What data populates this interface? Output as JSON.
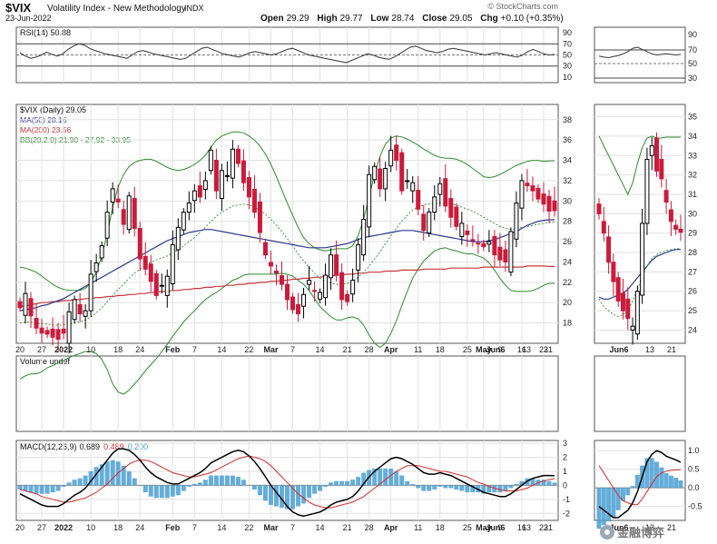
{
  "header": {
    "ticker": "$VIX",
    "name": "Volatility Index - New Methodology",
    "exchange": "INDX",
    "date": "23-Jun-2022",
    "open_label": "Open",
    "open": "29.29",
    "high_label": "High",
    "high": "29.77",
    "low_label": "Low",
    "low": "28.74",
    "close_label": "Close",
    "close": "29.05",
    "chg_label": "Chg",
    "chg": "+0.10 (+0.35%)",
    "brand": "© StockCharts.com"
  },
  "rsi": {
    "label": "RSI(14) 50.88",
    "ticks": [
      "90",
      "70",
      "50",
      "30",
      "10"
    ],
    "tick_values": [
      90,
      70,
      50,
      30,
      10
    ],
    "values": [
      54,
      48,
      44,
      46,
      50,
      55,
      51,
      48,
      52,
      60,
      66,
      70,
      68,
      62,
      58,
      55,
      52,
      50,
      48,
      46,
      44,
      50,
      56,
      58,
      55,
      52,
      50,
      48,
      46,
      44,
      42,
      44,
      50,
      56,
      62,
      64,
      60,
      56,
      52,
      50,
      48,
      46,
      50,
      54,
      56,
      54,
      52,
      50,
      52,
      56,
      60,
      62,
      58,
      54,
      50,
      48,
      46,
      44,
      42,
      40,
      38,
      36,
      40,
      44,
      48,
      52,
      50,
      46,
      44,
      42,
      46,
      52,
      58,
      64,
      66,
      62,
      58,
      56,
      54,
      56,
      60,
      62,
      60,
      58,
      56,
      54,
      52,
      50,
      52,
      54,
      52,
      50,
      48,
      46,
      50,
      56,
      60,
      56,
      52,
      50,
      51
    ]
  },
  "price": {
    "label_symbol": "$VIX (Daily) 29.05",
    "label_ma50": "MA(50) 28.16",
    "label_ma200": "MA(200) 23.56",
    "label_bb": "BB(20,2.0) 21.90 - 27.92 - 33.95",
    "ticks": [
      "38",
      "36",
      "34",
      "32",
      "30",
      "28",
      "26",
      "24",
      "22",
      "20",
      "18"
    ],
    "tick_values": [
      38,
      36,
      34,
      32,
      30,
      28,
      26,
      24,
      22,
      20,
      18
    ],
    "ylim": [
      16,
      39.5
    ],
    "close": [
      19.5,
      20.9,
      18.7,
      17.5,
      17.0,
      16.9,
      16.6,
      16.4,
      17.0,
      19.1,
      20.3,
      18.9,
      19.2,
      22.8,
      23.9,
      25.6,
      28.9,
      31.2,
      29.9,
      27.7,
      30.5,
      27.3,
      24.3,
      23.3,
      22.1,
      20.7,
      21.7,
      22.6,
      25.7,
      27.4,
      28.9,
      29.8,
      31.0,
      30.4,
      32.0,
      35.0,
      31.0,
      33.0,
      32.5,
      35.1,
      33.7,
      31.8,
      30.4,
      28.9,
      26.9,
      24.7,
      23.6,
      22.9,
      21.8,
      20.3,
      19.3,
      18.9,
      20.8,
      22.2,
      21.1,
      21.0,
      22.7,
      24.7,
      22.7,
      20.3,
      20.1,
      22.2,
      25.7,
      28.2,
      32.6,
      33.4,
      31.2,
      33.2,
      35.0,
      34.0,
      31.0,
      32.0,
      31.8,
      29.2,
      27.1,
      28.9,
      30.4,
      31.7,
      29.5,
      28.4,
      27.5,
      27.8,
      26.7,
      26.1,
      25.8,
      25.5,
      26.0,
      24.7,
      24.2,
      24.0,
      27.0,
      29.8,
      32.0,
      31.5,
      31.0,
      30.2,
      29.7,
      29.0,
      29.05
    ],
    "ma50": [
      19.2,
      19.3,
      19.4,
      19.5,
      19.7,
      19.8,
      20.0,
      20.2,
      20.4,
      20.7,
      21.0,
      21.3,
      21.6,
      21.9,
      22.2,
      22.5,
      22.8,
      23.1,
      23.4,
      23.7,
      24.0,
      24.3,
      24.6,
      24.9,
      25.2,
      25.5,
      25.8,
      26.1,
      26.3,
      26.5,
      26.7,
      26.9,
      27.0,
      27.1,
      27.2,
      27.2,
      27.1,
      27.0,
      26.9,
      26.8,
      26.7,
      26.6,
      26.5,
      26.4,
      26.3,
      26.2,
      26.1,
      26.0,
      25.9,
      25.8,
      25.7,
      25.6,
      25.5,
      25.4,
      25.4,
      25.4,
      25.4,
      25.5,
      25.6,
      25.7,
      25.8,
      26.0,
      26.2,
      26.4,
      26.5,
      26.6,
      26.7,
      26.8,
      26.9,
      27.0,
      27.1,
      27.1,
      27.1,
      27.0,
      26.9,
      26.8,
      26.7,
      26.6,
      26.5,
      26.4,
      26.3,
      26.2,
      26.1,
      26.0,
      26.0,
      26.0,
      26.1,
      26.2,
      26.4,
      26.6,
      26.8,
      27.0,
      27.3,
      27.6,
      27.8,
      28.0,
      28.1,
      28.15,
      28.16
    ],
    "ma200": [
      19.6,
      19.7,
      19.8,
      19.9,
      20.0,
      20.0,
      20.1,
      20.1,
      20.2,
      20.2,
      20.3,
      20.3,
      20.4,
      20.4,
      20.5,
      20.5,
      20.6,
      20.6,
      20.7,
      20.7,
      20.8,
      20.8,
      20.9,
      20.9,
      21.0,
      21.0,
      21.1,
      21.1,
      21.2,
      21.2,
      21.3,
      21.3,
      21.4,
      21.4,
      21.5,
      21.5,
      21.6,
      21.6,
      21.7,
      21.7,
      21.8,
      21.8,
      21.9,
      21.9,
      22.0,
      22.0,
      22.1,
      22.1,
      22.2,
      22.2,
      22.3,
      22.3,
      22.4,
      22.4,
      22.5,
      22.5,
      22.6,
      22.6,
      22.7,
      22.7,
      22.8,
      22.8,
      22.9,
      22.9,
      23.0,
      23.0,
      23.0,
      23.1,
      23.1,
      23.1,
      23.2,
      23.2,
      23.2,
      23.2,
      23.3,
      23.3,
      23.3,
      23.3,
      23.3,
      23.4,
      23.4,
      23.4,
      23.4,
      23.4,
      23.4,
      23.5,
      23.5,
      23.5,
      23.5,
      23.5,
      23.5,
      23.5,
      23.5,
      23.6,
      23.6,
      23.6,
      23.6,
      23.56,
      23.56
    ],
    "bb_mid": [
      18.0,
      18.1,
      18.1,
      18.0,
      17.9,
      17.9,
      17.8,
      17.8,
      17.8,
      17.9,
      18.0,
      18.1,
      18.3,
      18.6,
      19.0,
      19.5,
      20.1,
      20.7,
      21.3,
      21.8,
      22.4,
      22.9,
      23.3,
      23.7,
      24.0,
      24.2,
      24.4,
      24.6,
      24.9,
      25.2,
      25.6,
      26.0,
      26.4,
      26.9,
      27.4,
      28.0,
      28.5,
      28.9,
      29.2,
      29.5,
      29.6,
      29.7,
      29.6,
      29.4,
      29.1,
      28.7,
      28.2,
      27.6,
      27.0,
      26.3,
      25.6,
      24.8,
      24.1,
      23.5,
      22.9,
      22.4,
      22.1,
      21.9,
      21.8,
      21.8,
      21.9,
      22.1,
      22.5,
      23.0,
      23.6,
      24.3,
      25.0,
      25.8,
      26.6,
      27.3,
      28.0,
      28.6,
      29.1,
      29.4,
      29.6,
      29.7,
      29.8,
      29.8,
      29.8,
      29.7,
      29.6,
      29.4,
      29.2,
      29.0,
      28.7,
      28.4,
      28.1,
      27.8,
      27.5,
      27.3,
      27.2,
      27.3,
      27.4,
      27.5,
      27.6,
      27.7,
      27.8,
      27.9,
      27.92
    ],
    "bb_upper": [
      23.5,
      23.4,
      23.2,
      23.0,
      22.6,
      22.2,
      21.8,
      21.5,
      21.3,
      21.2,
      21.2,
      21.2,
      21.4,
      22.0,
      23.0,
      24.6,
      26.8,
      29.4,
      31.4,
      32.6,
      33.4,
      33.8,
      34.0,
      34.1,
      34.1,
      33.9,
      33.6,
      33.3,
      33.1,
      33.0,
      33.1,
      33.3,
      33.6,
      34.0,
      34.5,
      35.3,
      36.0,
      36.4,
      36.6,
      36.8,
      36.8,
      36.7,
      36.4,
      36.0,
      35.4,
      34.6,
      33.6,
      32.4,
      31.1,
      29.8,
      28.6,
      27.4,
      26.4,
      25.8,
      25.4,
      25.2,
      25.1,
      25.2,
      25.3,
      25.3,
      25.3,
      25.6,
      26.6,
      28.2,
      30.4,
      32.6,
      34.4,
      35.6,
      36.2,
      36.4,
      36.3,
      36.1,
      35.8,
      35.5,
      35.1,
      34.8,
      34.5,
      34.3,
      34.2,
      34.2,
      34.1,
      33.9,
      33.6,
      33.2,
      32.8,
      32.4,
      32.3,
      32.4,
      32.6,
      32.9,
      33.2,
      33.5,
      33.7,
      33.9,
      34.0,
      34.0,
      33.9,
      33.95,
      33.95
    ],
    "bb_lower": [
      12.5,
      12.8,
      13.0,
      13.0,
      13.2,
      13.6,
      13.8,
      14.1,
      14.3,
      14.6,
      14.8,
      15.0,
      15.2,
      15.2,
      15.0,
      14.4,
      13.4,
      12.0,
      11.2,
      11.0,
      11.4,
      12.0,
      12.6,
      13.3,
      13.9,
      14.5,
      15.2,
      15.9,
      16.7,
      17.4,
      18.1,
      18.7,
      19.2,
      19.8,
      20.3,
      20.7,
      21.0,
      21.4,
      21.8,
      22.2,
      22.4,
      22.7,
      22.8,
      22.8,
      22.8,
      22.8,
      22.8,
      22.8,
      22.9,
      22.8,
      22.6,
      22.2,
      21.8,
      21.2,
      20.4,
      19.6,
      19.1,
      18.6,
      18.3,
      18.3,
      18.5,
      18.6,
      18.4,
      17.8,
      16.8,
      16.0,
      15.6,
      16.0,
      17.0,
      18.2,
      19.7,
      21.1,
      22.4,
      23.3,
      24.1,
      24.6,
      25.1,
      25.3,
      25.4,
      25.2,
      25.1,
      24.9,
      24.8,
      24.8,
      24.6,
      24.4,
      23.9,
      23.2,
      22.4,
      21.7,
      21.2,
      21.1,
      21.1,
      21.1,
      21.2,
      21.4,
      21.7,
      21.9,
      21.9
    ]
  },
  "volume": {
    "label": "Volume undef"
  },
  "macd": {
    "label_main": "MACD(12,26,9)",
    "value_macd": "0.689",
    "value_signal": "0.489",
    "value_hist": "0.200",
    "ticks": [
      "3",
      "2",
      "1",
      "0",
      "-1",
      "-2"
    ],
    "tick_values": [
      3,
      2,
      1,
      0,
      -1,
      -2
    ],
    "ylim": [
      -2.5,
      3.2
    ],
    "macd": [
      -0.6,
      -0.8,
      -1.0,
      -1.2,
      -1.4,
      -1.5,
      -1.5,
      -1.5,
      -1.3,
      -1.0,
      -0.7,
      -0.5,
      -0.2,
      0.3,
      0.8,
      1.3,
      1.8,
      2.3,
      2.6,
      2.6,
      2.5,
      2.2,
      1.8,
      1.3,
      0.9,
      0.6,
      0.4,
      0.2,
      0.1,
      0.1,
      0.3,
      0.5,
      0.7,
      0.9,
      1.2,
      1.6,
      1.8,
      2.0,
      2.2,
      2.4,
      2.5,
      2.4,
      2.1,
      1.7,
      1.2,
      0.6,
      0.0,
      -0.5,
      -1.0,
      -1.5,
      -1.9,
      -2.1,
      -2.2,
      -2.1,
      -2.0,
      -1.9,
      -1.7,
      -1.4,
      -1.2,
      -1.1,
      -1.0,
      -0.8,
      -0.4,
      0.1,
      0.6,
      1.0,
      1.3,
      1.6,
      1.9,
      2.0,
      1.9,
      1.7,
      1.5,
      1.2,
      0.9,
      0.8,
      0.8,
      0.9,
      0.8,
      0.7,
      0.5,
      0.3,
      0.1,
      -0.1,
      -0.3,
      -0.5,
      -0.6,
      -0.7,
      -0.8,
      -0.8,
      -0.6,
      -0.3,
      0.0,
      0.3,
      0.5,
      0.6,
      0.7,
      0.7,
      0.689
    ],
    "signal": [
      -0.3,
      -0.4,
      -0.5,
      -0.6,
      -0.8,
      -0.9,
      -1.0,
      -1.1,
      -1.2,
      -1.2,
      -1.1,
      -1.0,
      -0.9,
      -0.7,
      -0.5,
      -0.2,
      0.1,
      0.5,
      0.9,
      1.2,
      1.5,
      1.7,
      1.8,
      1.8,
      1.7,
      1.5,
      1.3,
      1.1,
      0.9,
      0.8,
      0.7,
      0.6,
      0.6,
      0.7,
      0.8,
      0.9,
      1.1,
      1.3,
      1.5,
      1.7,
      1.9,
      2.0,
      2.1,
      2.0,
      1.9,
      1.7,
      1.4,
      1.0,
      0.6,
      0.2,
      -0.2,
      -0.6,
      -0.9,
      -1.2,
      -1.4,
      -1.5,
      -1.6,
      -1.6,
      -1.5,
      -1.4,
      -1.3,
      -1.2,
      -1.0,
      -0.8,
      -0.5,
      -0.2,
      0.1,
      0.4,
      0.7,
      1.0,
      1.2,
      1.4,
      1.4,
      1.4,
      1.3,
      1.2,
      1.1,
      1.0,
      1.0,
      0.9,
      0.8,
      0.7,
      0.6,
      0.4,
      0.2,
      0.1,
      -0.1,
      -0.2,
      -0.3,
      -0.4,
      -0.4,
      -0.4,
      -0.3,
      -0.2,
      0.0,
      0.2,
      0.3,
      0.4,
      0.489
    ]
  },
  "x_axis": {
    "labels": [
      {
        "t": "20",
        "i": 0,
        "bold": false
      },
      {
        "t": "27",
        "i": 4,
        "bold": false
      },
      {
        "t": "2022",
        "i": 8,
        "bold": true
      },
      {
        "t": "10",
        "i": 13,
        "bold": false
      },
      {
        "t": "18",
        "i": 18,
        "bold": false
      },
      {
        "t": "24",
        "i": 22,
        "bold": false
      },
      {
        "t": "Feb",
        "i": 28,
        "bold": true
      },
      {
        "t": "7",
        "i": 32,
        "bold": false
      },
      {
        "t": "14",
        "i": 37,
        "bold": false
      },
      {
        "t": "22",
        "i": 42,
        "bold": false
      },
      {
        "t": "Mar",
        "i": 46,
        "bold": true
      },
      {
        "t": "7",
        "i": 50,
        "bold": false
      },
      {
        "t": "14",
        "i": 55,
        "bold": false
      },
      {
        "t": "21",
        "i": 60,
        "bold": false
      },
      {
        "t": "28",
        "i": 64,
        "bold": false
      },
      {
        "t": "Apr",
        "i": 68,
        "bold": true
      },
      {
        "t": "11",
        "i": 73,
        "bold": false
      },
      {
        "t": "18",
        "i": 77,
        "bold": false
      },
      {
        "t": "25",
        "i": 82,
        "bold": false
      },
      {
        "t": "May",
        "i": 85,
        "bold": true
      },
      {
        "t": "9",
        "i": 88,
        "bold": false
      },
      {
        "t": "16",
        "i": 92,
        "bold": false
      },
      {
        "t": "23",
        "i": 96,
        "bold": false
      }
    ]
  },
  "x_axis_labels_plain": {
    "a": "20",
    "b": "27",
    "c": "2022",
    "d": "10",
    "e": "18",
    "f": "24",
    "g": "Feb",
    "h": "7",
    "i": "14",
    "j": "22",
    "k": "Mar",
    "l": "7",
    "m": "14",
    "n": "21",
    "o": "28",
    "p": "Apr",
    "q": "11",
    "r": "18",
    "s": "25",
    "t": "May",
    "u": "9",
    "v": "16",
    "w": "23",
    "x": "Jun6",
    "y": "13",
    "z": "21"
  },
  "zoom": {
    "rsi_ticks": [
      "90",
      "70",
      "50",
      "30"
    ],
    "price_ticks": [
      "35",
      "34",
      "33",
      "32",
      "31",
      "30",
      "29",
      "28",
      "27",
      "26",
      "25",
      "24"
    ],
    "price_tick_values": [
      35,
      34,
      33,
      32,
      31,
      30,
      29,
      28,
      27,
      26,
      25,
      24
    ],
    "macd_ticks": [
      "1.0",
      "0.5",
      "0.0",
      "-0.5"
    ],
    "macd_tick_values": [
      1.0,
      0.5,
      0.0,
      -0.5
    ],
    "x_labels": [
      "Jun6",
      "13",
      "21"
    ],
    "close": [
      30.0,
      29.0,
      27.5,
      26.5,
      25.5,
      25.0,
      24.6,
      24.2,
      26.0,
      29.5,
      32.8,
      33.5,
      32.2,
      31.8,
      30.6,
      29.6,
      29.2,
      29.05
    ],
    "ma50": [
      25.7,
      25.6,
      25.6,
      25.7,
      25.8,
      25.9,
      26.1,
      26.4,
      26.7,
      27.0,
      27.3,
      27.6,
      27.8,
      27.9,
      28.0,
      28.1,
      28.15,
      28.16
    ],
    "macd": [
      -0.5,
      -0.6,
      -0.7,
      -0.8,
      -0.8,
      -0.7,
      -0.6,
      -0.4,
      -0.1,
      0.3,
      0.7,
      0.9,
      1.0,
      0.95,
      0.85,
      0.8,
      0.75,
      0.69
    ],
    "signal": [
      0.6,
      0.4,
      0.2,
      0.0,
      -0.2,
      -0.35,
      -0.4,
      -0.45,
      -0.45,
      -0.3,
      -0.1,
      0.1,
      0.3,
      0.4,
      0.45,
      0.47,
      0.48,
      0.49
    ]
  },
  "watermark": "金融博弈",
  "colors": {
    "up": "#000000",
    "down": "#cc1a3a",
    "ma50": "#2b3a8f",
    "ma200": "#c8373c",
    "bb": "#2e8b2e",
    "macd": "#000000",
    "signal": "#d12c2c",
    "hist": "#4a9fd4",
    "grid": "#e2e2e2"
  },
  "chart_data": {
    "type": "line",
    "title": "$VIX Volatility Index - New Methodology INDX",
    "x_labels": [
      "20",
      "27",
      "2022",
      "10",
      "18",
      "24",
      "Feb",
      "7",
      "14",
      "22",
      "Mar",
      "7",
      "14",
      "21",
      "28",
      "Apr",
      "11",
      "18",
      "25",
      "May",
      "9",
      "16",
      "23",
      "Jun6",
      "13",
      "21"
    ],
    "series": [
      {
        "name": "$VIX (Daily) 29.05"
      },
      {
        "name": "MA(50) 28.16"
      },
      {
        "name": "MA(200) 23.56"
      },
      {
        "name": "BB(20,2.0) 21.90 - 27.92 - 33.95"
      }
    ],
    "ylim": [
      16,
      39
    ],
    "grid": true
  }
}
